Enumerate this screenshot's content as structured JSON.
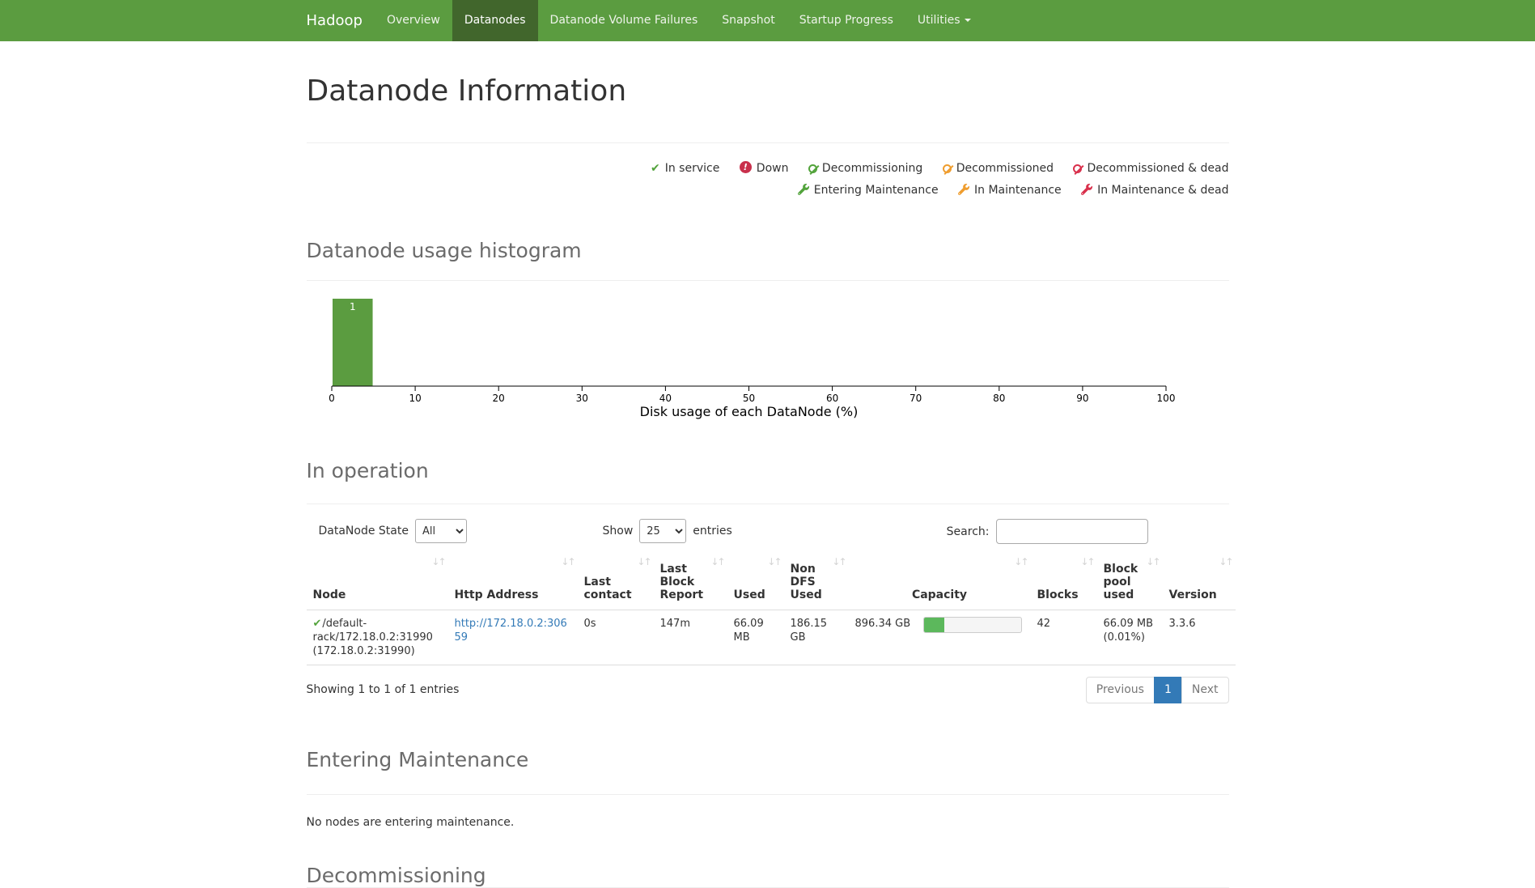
{
  "navbar": {
    "brand": "Hadoop",
    "items": [
      {
        "label": "Overview"
      },
      {
        "label": "Datanodes",
        "active": true
      },
      {
        "label": "Datanode Volume Failures"
      },
      {
        "label": "Snapshot"
      },
      {
        "label": "Startup Progress"
      },
      {
        "label": "Utilities",
        "dropdown": true
      }
    ]
  },
  "page": {
    "title": "Datanode Information"
  },
  "legend": {
    "row1": [
      {
        "icon": "check-icon",
        "color": "#52a33b",
        "label": "In service"
      },
      {
        "icon": "exclamation-circle-icon",
        "color": "#c9304c",
        "label": "Down"
      },
      {
        "icon": "ban-circle-icon",
        "color": "#52a33b",
        "label": "Decommissioning"
      },
      {
        "icon": "ban-circle-icon",
        "color": "#ef9d2e",
        "label": "Decommissioned"
      },
      {
        "icon": "ban-circle-icon",
        "color": "#d9304c",
        "label": "Decommissioned & dead"
      }
    ],
    "row2": [
      {
        "icon": "wrench-icon",
        "color": "#52a33b",
        "label": "Entering Maintenance"
      },
      {
        "icon": "wrench-icon",
        "color": "#ef9d2e",
        "label": "In Maintenance"
      },
      {
        "icon": "wrench-icon",
        "color": "#d9304c",
        "label": "In Maintenance & dead"
      }
    ]
  },
  "sections": {
    "histogram": "Datanode usage histogram",
    "in_operation": "In operation",
    "entering_maintenance": "Entering Maintenance",
    "entering_maintenance_empty": "No nodes are entering maintenance.",
    "decommissioning": "Decommissioning"
  },
  "chart_data": {
    "type": "bar",
    "title": "",
    "xlabel": "Disk usage of each DataNode (%)",
    "ylabel": "",
    "xlim": [
      0,
      100
    ],
    "xticks": [
      0,
      10,
      20,
      30,
      40,
      50,
      60,
      70,
      80,
      90,
      100
    ],
    "bars": [
      {
        "x0": 0,
        "x1": 5,
        "count": 1,
        "label": "1"
      }
    ],
    "ymax": 1,
    "bar_color": "#5b9c40",
    "bar_label_color": "#ffffff",
    "axis_color": "#000000",
    "grid": false,
    "legend_position": "none"
  },
  "controls": {
    "state_label": "DataNode State",
    "state_value": "All",
    "show_label": "Show",
    "show_value": "25",
    "entries_label": "entries",
    "search_label": "Search:",
    "search_value": ""
  },
  "table": {
    "columns": [
      "Node",
      "Http Address",
      "Last contact",
      "Last Block Report",
      "Used",
      "Non DFS Used",
      "Capacity",
      "Blocks",
      "Block pool used",
      "Version"
    ],
    "rows": [
      {
        "node": "/default-rack/172.18.0.2:31990",
        "node_detail": "(172.18.0.2:31990)",
        "node_state": "In service",
        "http_address": "http://172.18.0.2:30659",
        "last_contact": "0s",
        "last_block_report": "147m",
        "used": "66.09 MB",
        "non_dfs_used": "186.15 GB",
        "capacity": "896.34 GB",
        "capacity_bar": "20.8%",
        "blocks": "42",
        "block_pool_used": "66.09 MB",
        "block_pool_used_percent": "(0.01%)",
        "version": "3.3.6"
      }
    ],
    "summary": "Showing 1 to 1 of 1 entries",
    "pagination": {
      "previous": "Previous",
      "current_page": "1",
      "next": "Next"
    }
  },
  "colors": {
    "navbar_bg": "#5b9c40",
    "navbar_active_bg": "#41662c",
    "link": "#337ab7",
    "pagination_active_bg": "#337ab7",
    "histogram_bar": "#5b9c40",
    "progress_fill": "#5cb85c",
    "status_green": "#52a33b",
    "status_orange": "#ef9d2e",
    "status_red_down": "#c9304c",
    "status_red_dead": "#d9304c"
  }
}
